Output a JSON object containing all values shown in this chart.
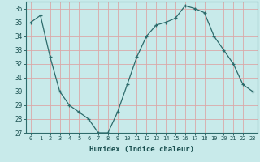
{
  "xlabel": "Humidex (Indice chaleur)",
  "ylabel": "",
  "x": [
    0,
    1,
    2,
    3,
    4,
    5,
    6,
    7,
    8,
    9,
    10,
    11,
    12,
    13,
    14,
    15,
    16,
    17,
    18,
    19,
    20,
    21,
    22,
    23
  ],
  "y": [
    35,
    35.5,
    32.5,
    30,
    29,
    28.5,
    28,
    27,
    27,
    28.5,
    30.5,
    32.5,
    34,
    34.8,
    35,
    35.3,
    36.2,
    36,
    35.7,
    34,
    33,
    32,
    30.5,
    30
  ],
  "ylim": [
    27,
    36.5
  ],
  "yticks": [
    27,
    28,
    29,
    30,
    31,
    32,
    33,
    34,
    35,
    36
  ],
  "xticks": [
    0,
    1,
    2,
    3,
    4,
    5,
    6,
    7,
    8,
    9,
    10,
    11,
    12,
    13,
    14,
    15,
    16,
    17,
    18,
    19,
    20,
    21,
    22,
    23
  ],
  "line_color": "#2d6b6b",
  "marker": "+",
  "bg_color": "#c8eaea",
  "grid_color": "#dba8a8",
  "axis_color": "#2d6b6b",
  "tick_color": "#1a5050",
  "label_color": "#1a5050"
}
